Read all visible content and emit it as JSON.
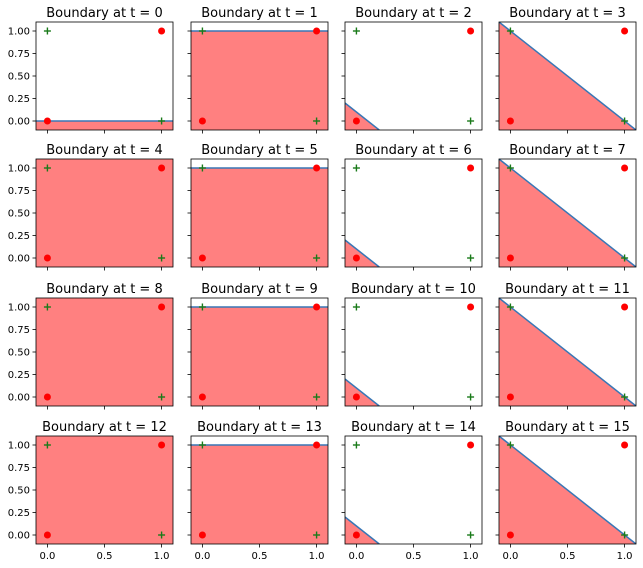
{
  "chart_data": {
    "type": "scatter",
    "grid": false,
    "xlim": [
      -0.1,
      1.1
    ],
    "ylim": [
      -0.1,
      1.1
    ],
    "xticks": [
      0.0,
      0.5,
      1.0
    ],
    "xtick_labels": [
      "0.0",
      "0.5",
      "1.0"
    ],
    "yticks": [
      0.0,
      0.25,
      0.5,
      0.75,
      1.0
    ],
    "ytick_labels": [
      "0.00",
      "0.25",
      "0.50",
      "0.75",
      "1.00"
    ],
    "colors": {
      "fill": "#ff8080",
      "line": "#3877b6",
      "circle": "#ff0000",
      "plus": "#1a7a1a"
    },
    "points": {
      "circle": [
        [
          0,
          0
        ],
        [
          1,
          1
        ]
      ],
      "plus": [
        [
          0,
          1
        ],
        [
          1,
          0
        ]
      ]
    },
    "panels": [
      {
        "title": "Boundary at t = 0",
        "kind": "horizontal",
        "y": 0.0
      },
      {
        "title": "Boundary at t = 1",
        "kind": "horizontal",
        "y": 1.0
      },
      {
        "title": "Boundary at t = 2",
        "kind": "diagonal",
        "x_intercept": 0.1
      },
      {
        "title": "Boundary at t = 3",
        "kind": "diagonal",
        "x_intercept": 1.0
      },
      {
        "title": "Boundary at t = 4",
        "kind": "full"
      },
      {
        "title": "Boundary at t = 5",
        "kind": "horizontal",
        "y": 1.0
      },
      {
        "title": "Boundary at t = 6",
        "kind": "diagonal",
        "x_intercept": 0.1
      },
      {
        "title": "Boundary at t = 7",
        "kind": "diagonal",
        "x_intercept": 1.0
      },
      {
        "title": "Boundary at t = 8",
        "kind": "full"
      },
      {
        "title": "Boundary at t = 9",
        "kind": "horizontal",
        "y": 1.0
      },
      {
        "title": "Boundary at t = 10",
        "kind": "diagonal",
        "x_intercept": 0.1
      },
      {
        "title": "Boundary at t = 11",
        "kind": "diagonal",
        "x_intercept": 1.0
      },
      {
        "title": "Boundary at t = 12",
        "kind": "full"
      },
      {
        "title": "Boundary at t = 13",
        "kind": "horizontal",
        "y": 1.0
      },
      {
        "title": "Boundary at t = 14",
        "kind": "diagonal",
        "x_intercept": 0.1
      },
      {
        "title": "Boundary at t = 15",
        "kind": "diagonal",
        "x_intercept": 1.0
      }
    ]
  }
}
